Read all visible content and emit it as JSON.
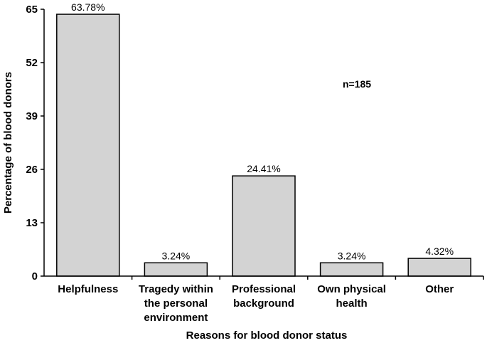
{
  "chart_data": {
    "type": "bar",
    "categories": [
      [
        "Helpfulness"
      ],
      [
        "Tragedy within",
        "the personal",
        "environment"
      ],
      [
        "Professional",
        "background"
      ],
      [
        "Own physical",
        "health"
      ],
      [
        "Other"
      ]
    ],
    "values": [
      63.78,
      3.24,
      24.41,
      3.24,
      4.32
    ],
    "data_labels": [
      "63.78%",
      "3.24%",
      "24.41%",
      "3.24%",
      "4.32%"
    ],
    "xlabel": "Reasons for blood donor status",
    "ylabel": "Percentage of blood donors",
    "ylim": [
      0,
      65
    ],
    "yticks": [
      0,
      13,
      26,
      39,
      52,
      65
    ],
    "annotation": "n=185",
    "bar_color": "#d3d3d3",
    "bar_edge_color": "#000000",
    "grid": false
  }
}
